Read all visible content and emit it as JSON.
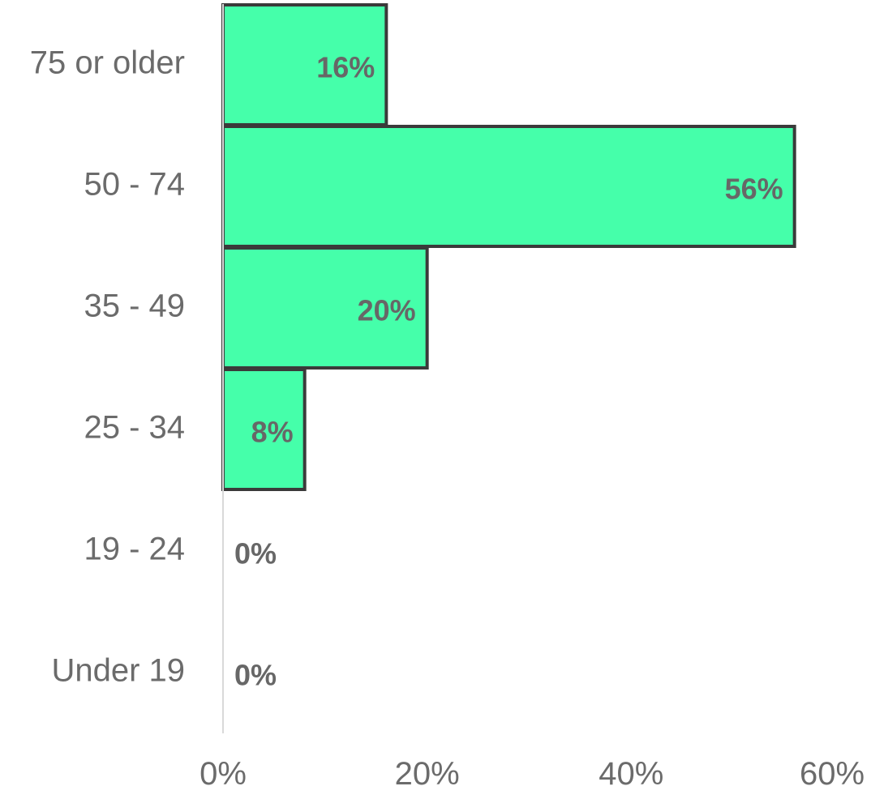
{
  "chart_data": {
    "type": "bar",
    "orientation": "horizontal",
    "categories": [
      "75 or older",
      "50 - 74",
      "35 - 49",
      "25 - 34",
      "19 - 24",
      "Under 19"
    ],
    "values": [
      16,
      56,
      20,
      8,
      0,
      0
    ],
    "data_labels": [
      "16%",
      "56%",
      "20%",
      "8%",
      "0%",
      "0%"
    ],
    "x_ticks": [
      "0%",
      "20%",
      "40%",
      "60%"
    ],
    "x_tick_values": [
      0,
      20,
      40,
      60
    ],
    "xlim": [
      0,
      60
    ],
    "title": "",
    "xlabel": "",
    "ylabel": "",
    "grid": false,
    "legend": "none",
    "colors": {
      "bar_fill": "#45FFAA",
      "bar_stroke": "#3a3a3a",
      "axis_line": "#d9d9d9",
      "label_text": "#6b6b6b",
      "data_label_text": "#676767"
    }
  }
}
